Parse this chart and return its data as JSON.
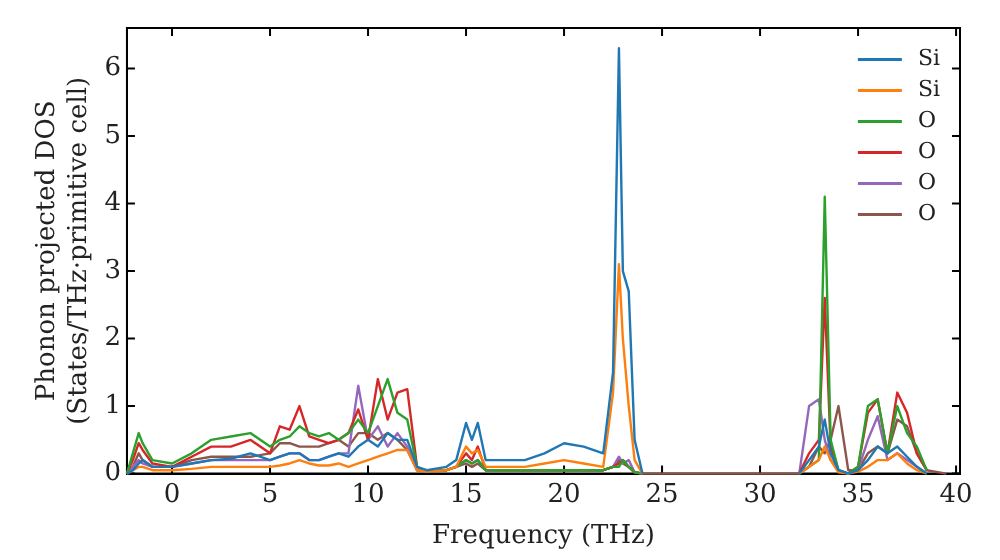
{
  "chart_data": {
    "type": "line",
    "xlabel": "Frequency (THz)",
    "ylabel": "Phonon projected DOS\n(States/THz·primitive cell)",
    "xlim": [
      -2.3,
      40.2
    ],
    "ylim": [
      0,
      6.6
    ],
    "xticks": [
      0,
      5,
      10,
      15,
      20,
      25,
      30,
      35,
      40
    ],
    "yticks": [
      0,
      1,
      2,
      3,
      4,
      5,
      6
    ],
    "grid": false,
    "legend": "top right",
    "marker": "none",
    "line_style": "solid",
    "x": [
      -2.3,
      -2,
      -1.7,
      -1.5,
      -1,
      0,
      1,
      2,
      3,
      4,
      5,
      5.5,
      6,
      6.5,
      7,
      7.5,
      8,
      8.5,
      9,
      9.5,
      10,
      10.5,
      11,
      11.5,
      12,
      12.5,
      13,
      14,
      14.5,
      15,
      15.3,
      15.6,
      16,
      17,
      18,
      19,
      20,
      21,
      22,
      22.5,
      22.8,
      23,
      23.3,
      23.6,
      24,
      25,
      30,
      32,
      32.5,
      33,
      33.3,
      33.6,
      34,
      34.5,
      35,
      35.5,
      36,
      36.5,
      37,
      37.5,
      38,
      38.5,
      39.5
    ],
    "series": [
      {
        "name": "Si",
        "color": "#1f77b4",
        "values": [
          0,
          0.05,
          0.15,
          0.2,
          0.1,
          0.1,
          0.15,
          0.2,
          0.22,
          0.3,
          0.2,
          0.25,
          0.3,
          0.3,
          0.2,
          0.2,
          0.25,
          0.3,
          0.25,
          0.4,
          0.5,
          0.4,
          0.6,
          0.5,
          0.5,
          0.1,
          0.05,
          0.1,
          0.2,
          0.75,
          0.5,
          0.75,
          0.2,
          0.2,
          0.2,
          0.3,
          0.45,
          0.4,
          0.3,
          1.5,
          6.3,
          3.0,
          2.7,
          0.5,
          0,
          null,
          null,
          0,
          0.2,
          0.4,
          0.8,
          0.3,
          0.05,
          0,
          0.05,
          0.2,
          0.4,
          0.3,
          0.4,
          0.25,
          0.1,
          0,
          null
        ]
      },
      {
        "name": "Si",
        "color": "#ff7f0e",
        "values": [
          0,
          0.05,
          0.1,
          0.1,
          0.05,
          0.05,
          0.07,
          0.1,
          0.1,
          0.1,
          0.1,
          0.12,
          0.15,
          0.2,
          0.15,
          0.12,
          0.12,
          0.15,
          0.1,
          0.15,
          0.2,
          0.25,
          0.3,
          0.35,
          0.35,
          0.05,
          0.03,
          0.05,
          0.1,
          0.4,
          0.3,
          0.35,
          0.1,
          0.1,
          0.1,
          0.15,
          0.2,
          0.15,
          0.1,
          1.2,
          3.1,
          2.0,
          1.0,
          0.2,
          0,
          null,
          null,
          0,
          0.1,
          0.2,
          0.4,
          0.2,
          0.02,
          0,
          0.03,
          0.1,
          0.2,
          0.2,
          0.3,
          0.15,
          0.05,
          0,
          null
        ]
      },
      {
        "name": "O",
        "color": "#2ca02c",
        "values": [
          0,
          0.3,
          0.6,
          0.45,
          0.2,
          0.15,
          0.3,
          0.5,
          0.55,
          0.6,
          0.4,
          0.5,
          0.55,
          0.7,
          0.6,
          0.55,
          0.6,
          0.5,
          0.6,
          0.8,
          0.6,
          1.0,
          1.4,
          0.9,
          0.8,
          0.1,
          0.03,
          0.05,
          0.1,
          0.2,
          0.15,
          0.2,
          0.05,
          0.05,
          0.05,
          0.05,
          0.05,
          0.05,
          0.05,
          0.1,
          0.1,
          0.2,
          0.1,
          0.02,
          0,
          null,
          null,
          0,
          0.1,
          0.2,
          4.1,
          0.5,
          0.05,
          0,
          0.1,
          1.0,
          1.1,
          0.3,
          1.0,
          0.6,
          0.4,
          0.05,
          null
        ]
      },
      {
        "name": "O",
        "color": "#d62728",
        "values": [
          0,
          0.2,
          0.45,
          0.35,
          0.15,
          0.1,
          0.25,
          0.4,
          0.4,
          0.5,
          0.3,
          0.7,
          0.65,
          1.0,
          0.55,
          0.5,
          0.45,
          0.5,
          0.6,
          0.95,
          0.5,
          1.4,
          0.8,
          1.2,
          1.25,
          0.1,
          0.03,
          0.05,
          0.1,
          0.3,
          0.2,
          0.4,
          0.05,
          0.05,
          0.05,
          0.05,
          0.05,
          0.05,
          0.05,
          0.1,
          0.15,
          0.2,
          0.1,
          0.02,
          0,
          null,
          null,
          0,
          0.3,
          0.5,
          2.6,
          0.4,
          0.05,
          0,
          0.1,
          0.9,
          1.1,
          0.3,
          1.2,
          0.9,
          0.3,
          0.05,
          null
        ]
      },
      {
        "name": "O",
        "color": "#9467bd",
        "values": [
          0,
          0.1,
          0.2,
          0.15,
          0.1,
          0.1,
          0.15,
          0.2,
          0.2,
          0.2,
          0.2,
          0.25,
          0.3,
          0.3,
          0.2,
          0.2,
          0.25,
          0.3,
          0.3,
          1.3,
          0.5,
          0.7,
          0.4,
          0.6,
          0.4,
          0.05,
          0.03,
          0.05,
          0.1,
          0.2,
          0.15,
          0.2,
          0.05,
          0.05,
          0.05,
          0.05,
          0.05,
          0.05,
          0.05,
          0.1,
          0.25,
          0.15,
          0.2,
          0.02,
          0,
          null,
          null,
          0,
          1.0,
          1.1,
          0.5,
          0.2,
          0.05,
          0,
          0.05,
          0.5,
          0.85,
          0.2,
          0.3,
          0.2,
          0.1,
          0,
          null
        ]
      },
      {
        "name": "O",
        "color": "#8c564b",
        "values": [
          0,
          0.1,
          0.3,
          0.2,
          0.1,
          0.1,
          0.2,
          0.25,
          0.25,
          0.25,
          0.3,
          0.45,
          0.45,
          0.4,
          0.4,
          0.4,
          0.45,
          0.5,
          0.4,
          0.6,
          0.6,
          0.5,
          0.6,
          0.5,
          0.35,
          0.05,
          0.03,
          0.05,
          0.1,
          0.15,
          0.1,
          0.15,
          0.05,
          0.05,
          0.05,
          0.05,
          0.05,
          0.05,
          0.05,
          0.1,
          0.2,
          0.15,
          0.1,
          0.02,
          0,
          0,
          0,
          0,
          0.1,
          0.4,
          0.3,
          0.5,
          1.0,
          0.05,
          0.05,
          0.3,
          0.4,
          0.3,
          0.8,
          0.7,
          0.3,
          0.05,
          0
        ]
      }
    ]
  }
}
